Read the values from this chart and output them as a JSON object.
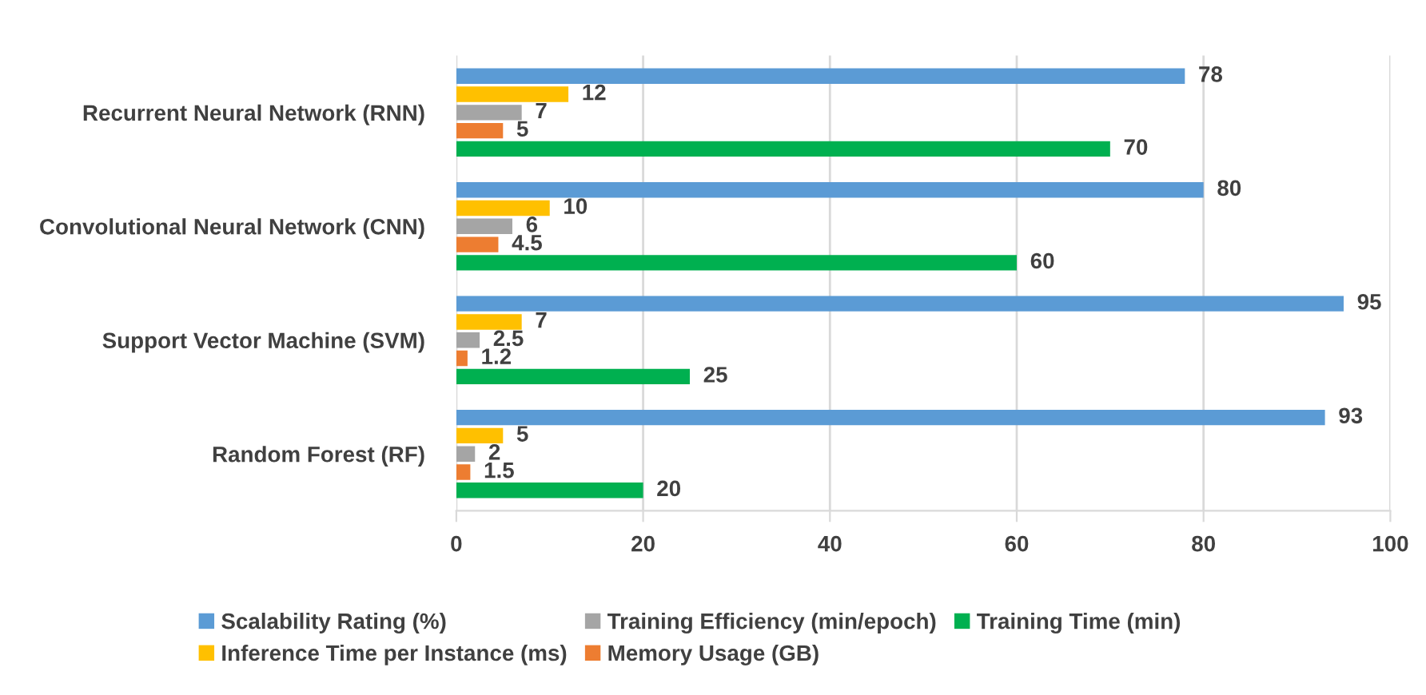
{
  "chart_data": {
    "type": "bar",
    "orientation": "horizontal",
    "categories": [
      "Recurrent Neural Network (RNN)",
      "Convolutional Neural Network (CNN)",
      "Support Vector Machine (SVM)",
      "Random Forest (RF)"
    ],
    "series": [
      {
        "name": "Scalability Rating (%)",
        "color": "#5b9bd5",
        "values": [
          78,
          80,
          95,
          93
        ]
      },
      {
        "name": "Inference Time per Instance (ms)",
        "color": "#ffc000",
        "values": [
          12,
          10,
          7,
          5
        ]
      },
      {
        "name": "Training Efficiency (min/epoch)",
        "color": "#a5a5a5",
        "values": [
          7,
          6,
          2.5,
          2
        ]
      },
      {
        "name": "Memory Usage (GB)",
        "color": "#ed7d31",
        "values": [
          5,
          4.5,
          1.2,
          1.5
        ]
      },
      {
        "name": "Training Time (min)",
        "color": "#00b050",
        "values": [
          70,
          60,
          25,
          20
        ]
      }
    ],
    "xlim": [
      0,
      100
    ],
    "xticks": [
      0,
      20,
      40,
      60,
      80,
      100
    ],
    "grid": "x",
    "legend": "bottom",
    "data_labels": true
  }
}
